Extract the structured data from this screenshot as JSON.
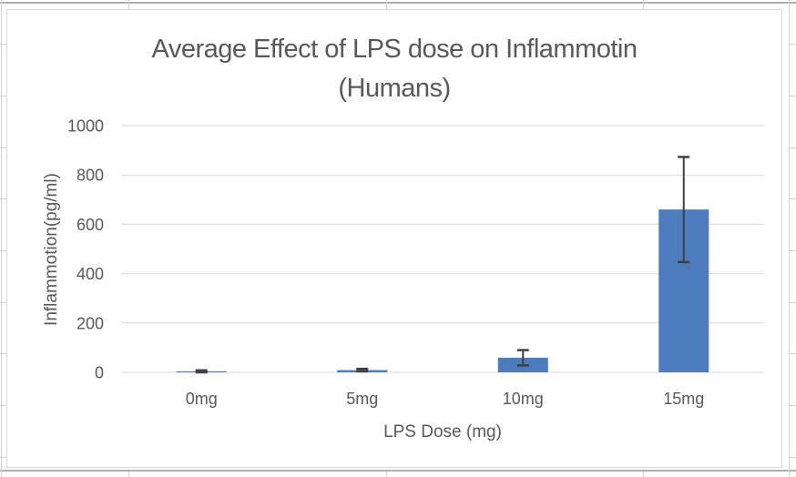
{
  "chart_data": {
    "type": "bar",
    "title": "Average Effect of LPS dose on Inflammotin (Humans)",
    "title_lines": [
      "Average Effect of LPS dose on Inflammotin",
      "(Humans)"
    ],
    "xlabel": "LPS Dose (mg)",
    "ylabel": "Inflammotion(pg/ml)",
    "categories": [
      "0mg",
      "5mg",
      "10mg",
      "15mg"
    ],
    "values": [
      4,
      9,
      59,
      660
    ],
    "error_bars": [
      4,
      5,
      31,
      213
    ],
    "ylim": [
      0,
      1000
    ],
    "ytick_interval": 200,
    "yticks": [
      "0",
      "200",
      "400",
      "600",
      "800",
      "1000"
    ],
    "grid": true,
    "legend": "none",
    "colors": {
      "bar_fill": "#4d7cbd",
      "error_bar": "#404040",
      "gridline": "#d9d9d9",
      "text": "#595959",
      "chart_border": "#d9d9d9",
      "sheet_gridline": "#d2d2d2"
    }
  }
}
